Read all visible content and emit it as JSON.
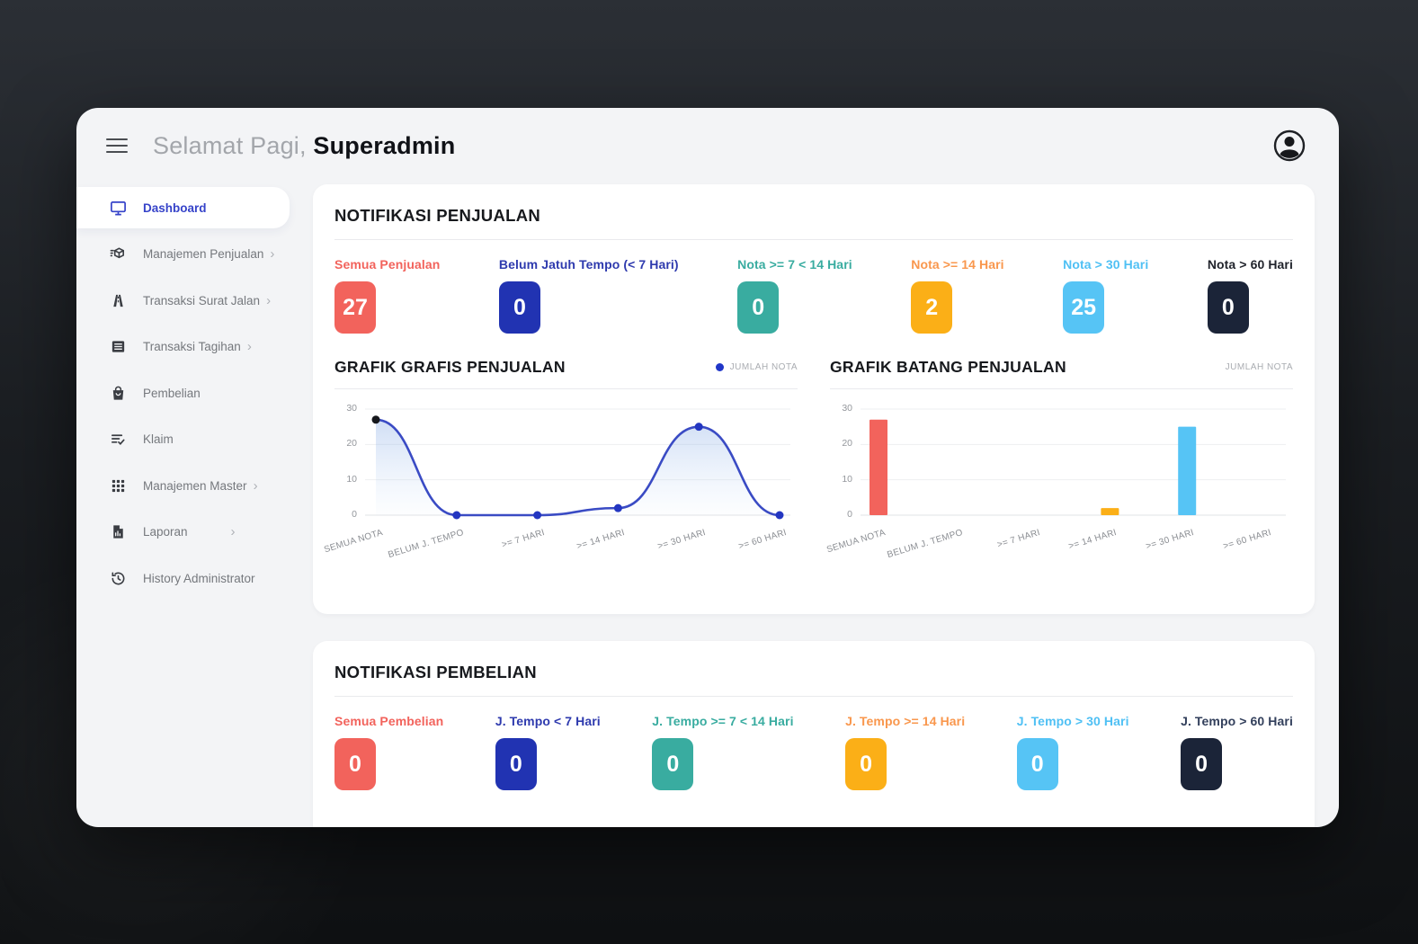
{
  "topbar": {
    "greeting": "Selamat Pagi,",
    "username": "Superadmin"
  },
  "sidebar": {
    "items": [
      {
        "label": "Dashboard",
        "active": true
      },
      {
        "label": "Manajemen Penjualan",
        "chevron": true
      },
      {
        "label": "Transaksi Surat Jalan",
        "chevron": true
      },
      {
        "label": "Transaksi Tagihan",
        "chevron": true
      },
      {
        "label": "Pembelian"
      },
      {
        "label": "Klaim"
      },
      {
        "label": "Manajemen Master",
        "chevron": true
      },
      {
        "label": "Laporan",
        "chevron": true
      },
      {
        "label": "History Administrator"
      }
    ]
  },
  "penjualan": {
    "title": "NOTIFIKASI PENJUALAN",
    "stats": [
      {
        "label": "Semua Penjualan",
        "value": "27",
        "label_color": "#F2635C",
        "badge_color": "#F2635C"
      },
      {
        "label": "Belum Jatuh Tempo (< 7 Hari)",
        "value": "0",
        "label_color": "#2E3AAE",
        "badge_color": "#2133B2"
      },
      {
        "label": "Nota >= 7 < 14 Hari",
        "value": "0",
        "label_color": "#39ACA0",
        "badge_color": "#39ACA0"
      },
      {
        "label": "Nota >= 14 Hari",
        "value": "2",
        "label_color": "#F9974D",
        "badge_color": "#FBAF17"
      },
      {
        "label": "Nota > 30 Hari",
        "value": "25",
        "label_color": "#4FC0F4",
        "badge_color": "#56C4F5"
      },
      {
        "label": "Nota > 60 Hari",
        "value": "0",
        "label_color": "#21242C",
        "badge_color": "#1B2438"
      }
    ]
  },
  "pembelian": {
    "title": "NOTIFIKASI PEMBELIAN",
    "stats": [
      {
        "label": "Semua Pembelian",
        "value": "0",
        "label_color": "#F2635C",
        "badge_color": "#F2635C"
      },
      {
        "label": "J. Tempo < 7 Hari",
        "value": "0",
        "label_color": "#2E3AAE",
        "badge_color": "#2133B2"
      },
      {
        "label": "J. Tempo >= 7 < 14 Hari",
        "value": "0",
        "label_color": "#39ACA0",
        "badge_color": "#39ACA0"
      },
      {
        "label": "J. Tempo >= 14 Hari",
        "value": "0",
        "label_color": "#F9974D",
        "badge_color": "#FBAF17"
      },
      {
        "label": "J. Tempo > 30 Hari",
        "value": "0",
        "label_color": "#4FC0F4",
        "badge_color": "#56C4F5"
      },
      {
        "label": "J. Tempo > 60 Hari",
        "value": "0",
        "label_color": "#33405C",
        "badge_color": "#1B2438"
      }
    ]
  },
  "chart_data": [
    {
      "type": "line",
      "title": "GRAFIK GRAFIS PENJUALAN",
      "legend": [
        "JUMLAH NOTA"
      ],
      "categories": [
        "SEMUA NOTA",
        "BELUM J. TEMPO",
        ">= 7 HARI",
        ">= 14 HARI",
        ">= 30 HARI",
        ">= 60 HARI"
      ],
      "values": [
        27,
        0,
        0,
        2,
        25,
        0
      ],
      "ylim": [
        0,
        30
      ],
      "yticks": [
        0,
        10,
        20,
        30
      ],
      "line_color": "#3A4BC4",
      "point_color": "#2336C1",
      "first_point_color": "#16181C",
      "area_color_top": "rgba(120,160,225,0.35)",
      "area_color_bottom": "rgba(180,210,245,0.03)",
      "grid": true,
      "legend_position": "top-right"
    },
    {
      "type": "bar",
      "title": "GRAFIK BATANG PENJUALAN",
      "legend": [
        "JUMLAH NOTA"
      ],
      "categories": [
        "SEMUA NOTA",
        "BELUM J. TEMPO",
        ">= 7 HARI",
        ">= 14 HARI",
        ">= 30 HARI",
        ">= 60 HARI"
      ],
      "values": [
        27,
        0,
        0,
        2,
        25,
        0
      ],
      "bar_colors": [
        "#F2635C",
        "#2133B2",
        "#39ACA0",
        "#FBAF17",
        "#56C4F5",
        "#1B2438"
      ],
      "ylim": [
        0,
        30
      ],
      "yticks": [
        0,
        10,
        20,
        30
      ],
      "grid": true,
      "legend_position": "top-right"
    }
  ]
}
